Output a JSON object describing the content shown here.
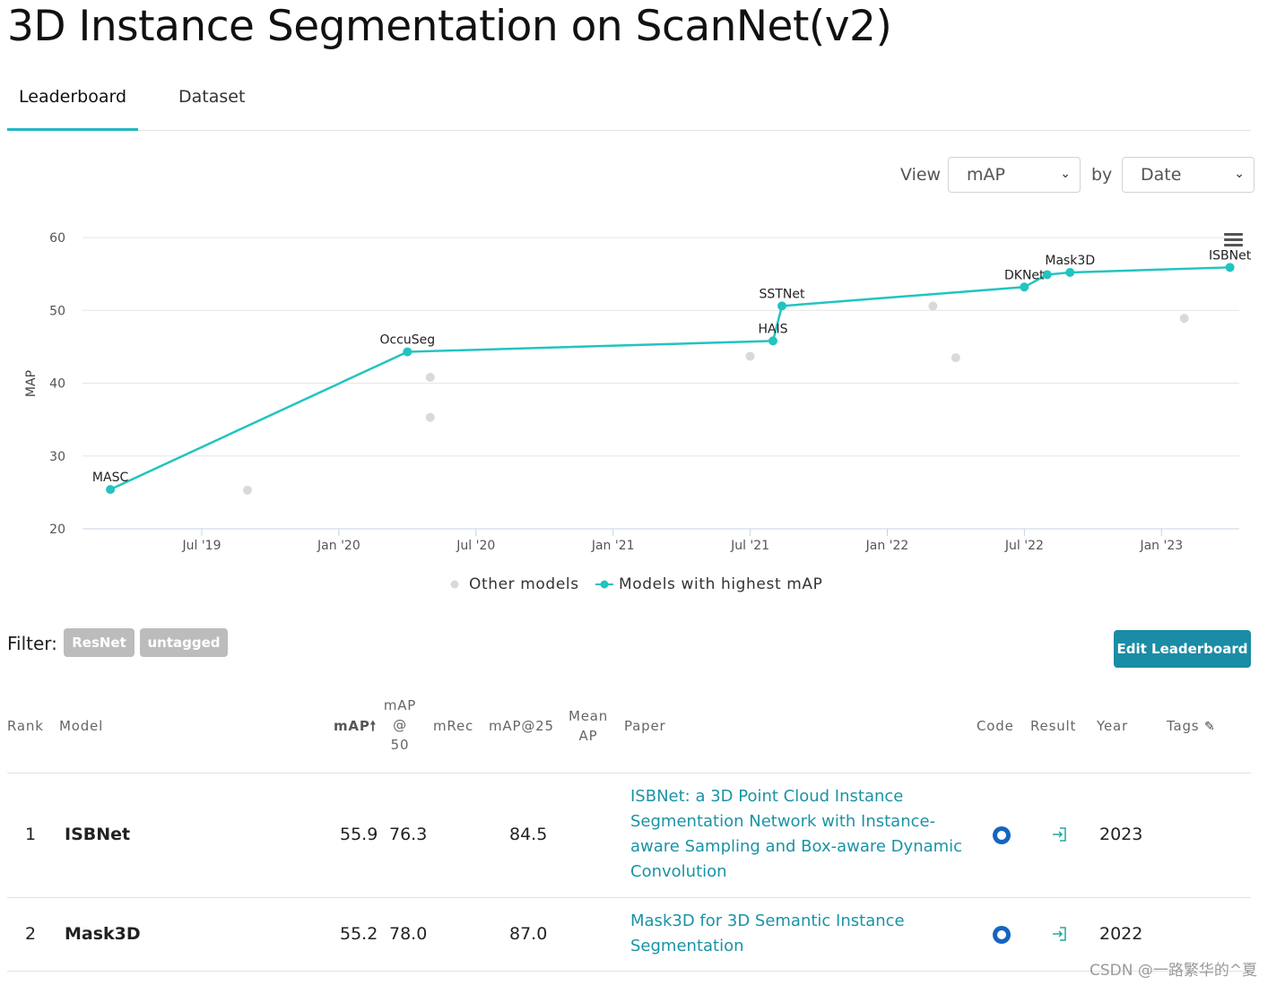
{
  "page": {
    "title": "3D Instance Segmentation on ScanNet(v2)"
  },
  "tabs": [
    {
      "label": "Leaderboard",
      "active": true
    },
    {
      "label": "Dataset",
      "active": false
    }
  ],
  "controls": {
    "view_label": "View",
    "view_value": "mAP",
    "by_label": "by",
    "by_value": "Date"
  },
  "chart_data": {
    "type": "scatter",
    "ylabel": "MAP",
    "ylim": [
      20,
      60
    ],
    "yticks": [
      20,
      30,
      40,
      50,
      60
    ],
    "xticks": [
      "Jul '19",
      "Jan '20",
      "Jul '20",
      "Jan '21",
      "Jul '21",
      "Jan '22",
      "Jul '22",
      "Jan '23"
    ],
    "grid": true,
    "legend_position": "bottom-center",
    "colors": {
      "best": "#21c4c0",
      "other": "#d9d9d9"
    },
    "series": [
      {
        "name": "Other models",
        "points": [
          {
            "x": "2019-09",
            "y": 25.3
          },
          {
            "x": "2020-05",
            "y": 40.8
          },
          {
            "x": "2020-05",
            "y": 35.3
          },
          {
            "x": "2021-07",
            "y": 43.7
          },
          {
            "x": "2022-03",
            "y": 50.6
          },
          {
            "x": "2022-04",
            "y": 43.5
          },
          {
            "x": "2023-02",
            "y": 48.9
          }
        ]
      },
      {
        "name": "Models with highest mAP",
        "points": [
          {
            "x": "2019-03",
            "y": 25.4,
            "label": "MASC"
          },
          {
            "x": "2020-04",
            "y": 44.3,
            "label": "OccuSeg"
          },
          {
            "x": "2021-08",
            "y": 45.8,
            "label": "HAIS"
          },
          {
            "x": "2021-08",
            "y": 50.6,
            "label": "SSTNet"
          },
          {
            "x": "2022-07",
            "y": 53.2,
            "label": "DKNet"
          },
          {
            "x": "2022-08",
            "y": 54.9,
            "label": ""
          },
          {
            "x": "2022-09",
            "y": 55.2,
            "label": "Mask3D"
          },
          {
            "x": "2023-04",
            "y": 55.9,
            "label": "ISBNet"
          }
        ]
      }
    ]
  },
  "filter": {
    "label": "Filter:",
    "tags": [
      "ResNet",
      "untagged"
    ]
  },
  "edit_button": "Edit Leaderboard",
  "table": {
    "headers": {
      "rank": "Rank",
      "model": "Model",
      "map": "mAP",
      "map50": [
        "mAP",
        "@",
        "50"
      ],
      "mrec": "mRec",
      "map25": "mAP@25",
      "mean_ap": [
        "Mean",
        "AP"
      ],
      "paper": "Paper",
      "code": "Code",
      "result": "Result",
      "year": "Year",
      "tags": "Tags"
    },
    "rows": [
      {
        "rank": "1",
        "model": "ISBNet",
        "map": "55.9",
        "map50": "76.3",
        "mrec": "",
        "map25": "84.5",
        "mean_ap": "",
        "paper": "ISBNet: a 3D Point Cloud Instance Segmentation Network with Instance-aware Sampling and Box-aware Dynamic Convolution",
        "year": "2023"
      },
      {
        "rank": "2",
        "model": "Mask3D",
        "map": "55.2",
        "map50": "78.0",
        "mrec": "",
        "map25": "87.0",
        "mean_ap": "",
        "paper": "Mask3D for 3D Semantic Instance Segmentation",
        "year": "2022"
      }
    ]
  },
  "watermark": "CSDN @一路繁华的^夏"
}
